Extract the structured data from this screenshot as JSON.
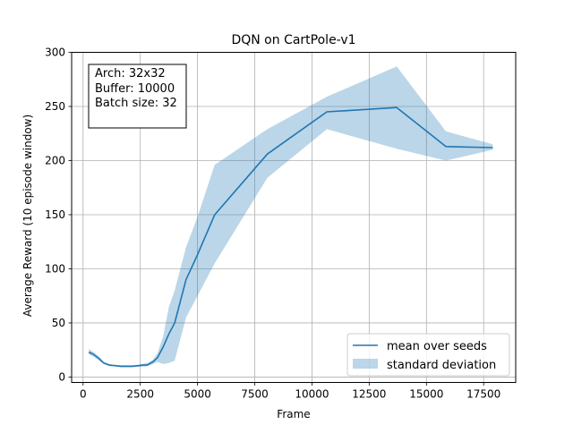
{
  "chart_data": {
    "type": "line",
    "title": "DQN on CartPole-v1",
    "xlabel": "Frame",
    "ylabel": "Average Reward (10 episode window)",
    "xlim": [
      -500,
      18900
    ],
    "ylim": [
      -5,
      300
    ],
    "xticks": [
      0,
      2500,
      5000,
      7500,
      10000,
      12500,
      15000,
      17500
    ],
    "yticks": [
      0,
      50,
      100,
      150,
      200,
      250,
      300
    ],
    "grid": true,
    "legend_position": "lower-right",
    "annotation_lines": [
      "Arch: 32x32",
      "Buffer: 10000",
      "Batch size: 32"
    ],
    "series": [
      {
        "name": "mean over seeds",
        "kind": "line",
        "color": "#1f77b4",
        "x": [
          250,
          450,
          700,
          900,
          1150,
          1400,
          1650,
          1900,
          2150,
          2400,
          2600,
          2800,
          3050,
          3250,
          3500,
          3750,
          4000,
          4500,
          5000,
          5750,
          8050,
          10650,
          13700,
          15850,
          17900
        ],
        "y": [
          23,
          21,
          17,
          13,
          11,
          10.5,
          10,
          10,
          10,
          10.5,
          11,
          11,
          14,
          18,
          28,
          40,
          50,
          90,
          113,
          150,
          206,
          245,
          249,
          213,
          212
        ]
      },
      {
        "name": "standard deviation",
        "kind": "band",
        "color": "#1f77b4",
        "opacity": 0.3,
        "x": [
          250,
          450,
          700,
          900,
          1150,
          1400,
          1650,
          1900,
          2150,
          2400,
          2600,
          2800,
          3050,
          3250,
          3500,
          3750,
          4000,
          4500,
          5000,
          5750,
          8050,
          10650,
          13700,
          15850,
          17900
        ],
        "lower": [
          21,
          19,
          15,
          12,
          10,
          10,
          9,
          9,
          9,
          9.5,
          9.5,
          10,
          12,
          14,
          12,
          13,
          15,
          55,
          75,
          105,
          184,
          229,
          211,
          200,
          210
        ],
        "upper": [
          26,
          23,
          19,
          14,
          12,
          11,
          11,
          11,
          11,
          11,
          12,
          13,
          16,
          22,
          38,
          65,
          80,
          120,
          148,
          196,
          229,
          259,
          287,
          227,
          215
        ]
      }
    ]
  }
}
